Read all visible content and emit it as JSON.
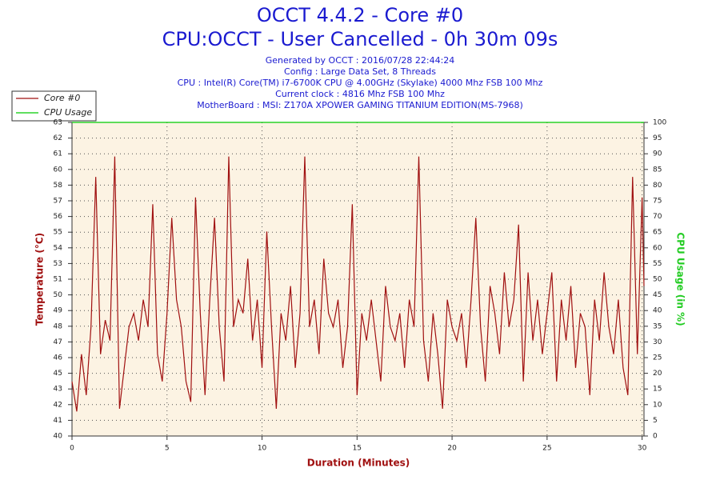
{
  "chart_data": {
    "type": "line",
    "title": "OCCT 4.4.2 - Core #0",
    "subtitle": "CPU:OCCT - User Cancelled - 0h 30m 09s",
    "info_lines": [
      "Generated by OCCT : 2016/07/28 22:44:24",
      "Config : Large Data Set, 8 Threads",
      "CPU : Intel(R) Core(TM) i7-6700K CPU @ 4.00GHz (Skylake) 4000 Mhz FSB 100 Mhz",
      "Current clock : 4816 Mhz FSB 100 Mhz",
      "MotherBoard : MSI: Z170A XPOWER GAMING TITANIUM EDITION(MS-7968)"
    ],
    "xlabel": "Duration (Minutes)",
    "ylabel": "Temperature (°C)",
    "y2label": "CPU Usage (in %)",
    "xlim": [
      0,
      30.1
    ],
    "xticks": [
      0,
      5,
      10,
      15,
      20,
      25,
      30
    ],
    "ylim": [
      40,
      63
    ],
    "yticks": [
      40,
      {
        "value": 41.15,
        "label": "41"
      },
      {
        "value": 42.3,
        "label": "42"
      },
      {
        "value": 43.45,
        "label": "43"
      },
      {
        "value": 44.6,
        "label": "45"
      },
      {
        "value": 45.75,
        "label": "46"
      },
      {
        "value": 46.9,
        "label": "47"
      },
      {
        "value": 48.05,
        "label": "48"
      },
      {
        "value": 49.2,
        "label": "49"
      },
      {
        "value": 50.35,
        "label": "50"
      },
      {
        "value": 51.5,
        "label": "51"
      },
      {
        "value": 52.65,
        "label": "53"
      },
      {
        "value": 53.8,
        "label": "54"
      },
      {
        "value": 54.95,
        "label": "55"
      },
      {
        "value": 56.1,
        "label": "56"
      },
      {
        "value": 57.25,
        "label": "57"
      },
      {
        "value": 58.4,
        "label": "58"
      },
      {
        "value": 59.55,
        "label": "60"
      },
      {
        "value": 60.7,
        "label": "61"
      },
      {
        "value": 61.85,
        "label": "62"
      },
      63
    ],
    "y2lim": [
      0,
      100
    ],
    "y2ticks": [
      0,
      5,
      10,
      15,
      20,
      25,
      30,
      35,
      40,
      45,
      50,
      55,
      60,
      65,
      70,
      75,
      80,
      85,
      90,
      95,
      100
    ],
    "grid": true,
    "legend": "top-left",
    "series": [
      {
        "name": "Core #0",
        "color": "#a01010",
        "x": [
          0,
          0.25,
          0.5,
          0.75,
          1,
          1.25,
          1.5,
          1.75,
          2,
          2.25,
          2.5,
          2.75,
          3,
          3.25,
          3.5,
          3.75,
          4,
          4.25,
          4.5,
          4.75,
          5,
          5.25,
          5.5,
          5.75,
          6,
          6.25,
          6.5,
          6.75,
          7,
          7.25,
          7.5,
          7.75,
          8,
          8.25,
          8.5,
          8.75,
          9,
          9.25,
          9.5,
          9.75,
          10,
          10.25,
          10.5,
          10.75,
          11,
          11.25,
          11.5,
          11.75,
          12,
          12.25,
          12.5,
          12.75,
          13,
          13.25,
          13.5,
          13.75,
          14,
          14.25,
          14.5,
          14.75,
          15,
          15.25,
          15.5,
          15.75,
          16,
          16.25,
          16.5,
          16.75,
          17,
          17.25,
          17.5,
          17.75,
          18,
          18.25,
          18.5,
          18.75,
          19,
          19.25,
          19.5,
          19.75,
          20,
          20.25,
          20.5,
          20.75,
          21,
          21.25,
          21.5,
          21.75,
          22,
          22.25,
          22.5,
          22.75,
          23,
          23.25,
          23.5,
          23.75,
          24,
          24.25,
          24.5,
          24.75,
          25,
          25.25,
          25.5,
          25.75,
          26,
          26.25,
          26.5,
          26.75,
          27,
          27.25,
          27.5,
          27.75,
          28,
          28.25,
          28.5,
          28.75,
          29,
          29.25,
          29.5,
          29.75,
          30,
          30.1
        ],
        "values": [
          44,
          41.8,
          46,
          43,
          48,
          59,
          46,
          48.5,
          47,
          60.5,
          42,
          45,
          48,
          49,
          47,
          50,
          48,
          57,
          46,
          44,
          49,
          56,
          50,
          48,
          44,
          42.5,
          57.5,
          49,
          43,
          50,
          56,
          48,
          44,
          60.5,
          48,
          50,
          49,
          53,
          47,
          50,
          45,
          55,
          48,
          42,
          49,
          47,
          51,
          45,
          49,
          60.5,
          48,
          50,
          46,
          53,
          49,
          48,
          50,
          45,
          48,
          57,
          43,
          49,
          47,
          50,
          47,
          44,
          51,
          48,
          47,
          49,
          45,
          50,
          48,
          60.5,
          47,
          44,
          49,
          46,
          42,
          50,
          48,
          47,
          49,
          45,
          50,
          56,
          48,
          44,
          51,
          49,
          46,
          52,
          48,
          50,
          55.5,
          44,
          52,
          47,
          50,
          46,
          49,
          52,
          44,
          50,
          47,
          51,
          45,
          49,
          48,
          43,
          50,
          47,
          52,
          48,
          46,
          50,
          45,
          43,
          59,
          46,
          57.5,
          51
        ]
      },
      {
        "name": "CPU Usage",
        "color": "#00cc00",
        "axis": "y2",
        "x": [
          0,
          30.1
        ],
        "values": [
          100,
          100
        ]
      }
    ]
  }
}
